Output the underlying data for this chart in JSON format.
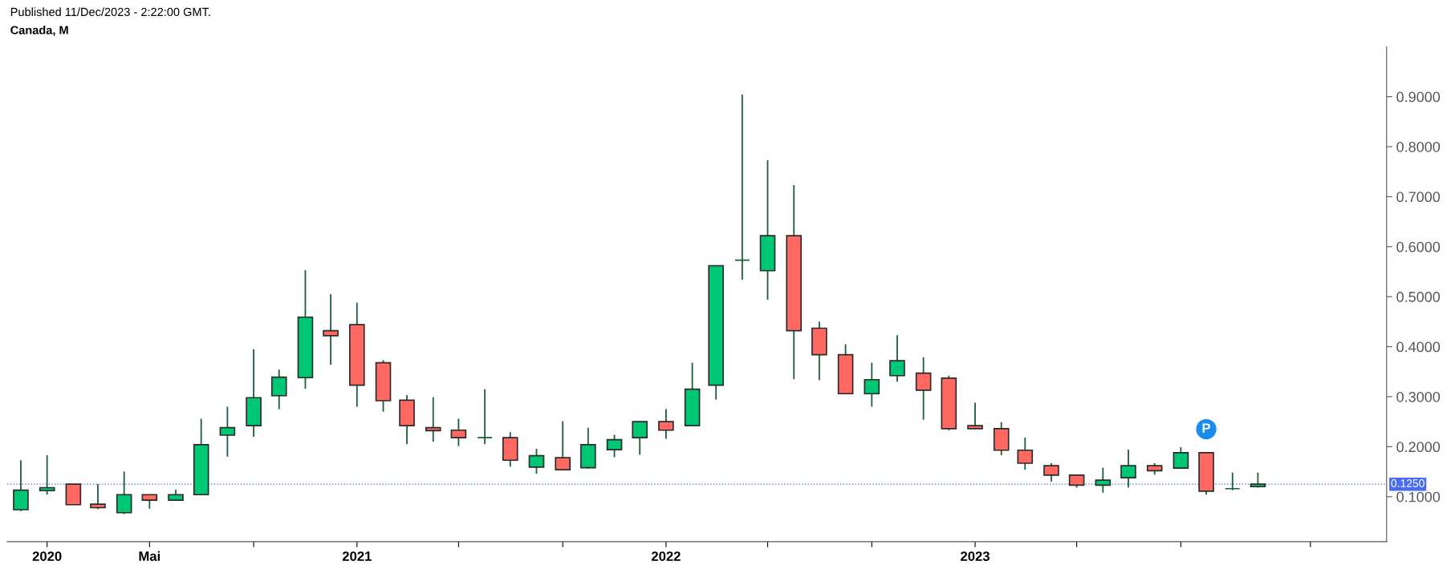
{
  "chart_data": {
    "type": "candlestick",
    "title": "Canada, M",
    "annotations": [
      "Published 11/Dec/2023 - 2:22:00 GMT.",
      {
        "text": "P",
        "x": "2023-10",
        "y": 0.235
      }
    ],
    "x": [
      "2019-12",
      "2020-01",
      "2020-02",
      "2020-03",
      "2020-04",
      "2020-05",
      "2020-06",
      "2020-07",
      "2020-08",
      "2020-09",
      "2020-10",
      "2020-11",
      "2020-12",
      "2021-01",
      "2021-02",
      "2021-03",
      "2021-04",
      "2021-05",
      "2021-06",
      "2021-07",
      "2021-08",
      "2021-09",
      "2021-10",
      "2021-11",
      "2021-12",
      "2022-01",
      "2022-02",
      "2022-03",
      "2022-04",
      "2022-05",
      "2022-06",
      "2022-07",
      "2022-08",
      "2022-09",
      "2022-10",
      "2022-11",
      "2022-12",
      "2023-01",
      "2023-02",
      "2023-03",
      "2023-04",
      "2023-05",
      "2023-06",
      "2023-07",
      "2023-08",
      "2023-09",
      "2023-10",
      "2023-11",
      "2023-12"
    ],
    "ohlc": [
      [
        0.074,
        0.173,
        0.071,
        0.113
      ],
      [
        0.112,
        0.183,
        0.104,
        0.118
      ],
      [
        0.125,
        0.125,
        0.084,
        0.084
      ],
      [
        0.085,
        0.125,
        0.075,
        0.078
      ],
      [
        0.068,
        0.15,
        0.065,
        0.104
      ],
      [
        0.104,
        0.104,
        0.076,
        0.093
      ],
      [
        0.093,
        0.114,
        0.093,
        0.104
      ],
      [
        0.104,
        0.256,
        0.104,
        0.204
      ],
      [
        0.223,
        0.28,
        0.18,
        0.238
      ],
      [
        0.242,
        0.395,
        0.22,
        0.298
      ],
      [
        0.302,
        0.354,
        0.275,
        0.339
      ],
      [
        0.338,
        0.553,
        0.316,
        0.459
      ],
      [
        0.432,
        0.505,
        0.364,
        0.422
      ],
      [
        0.444,
        0.488,
        0.28,
        0.323
      ],
      [
        0.368,
        0.373,
        0.27,
        0.292
      ],
      [
        0.293,
        0.303,
        0.205,
        0.242
      ],
      [
        0.238,
        0.299,
        0.21,
        0.232
      ],
      [
        0.233,
        0.256,
        0.201,
        0.218
      ],
      [
        0.218,
        0.315,
        0.205,
        0.218
      ],
      [
        0.218,
        0.229,
        0.16,
        0.173
      ],
      [
        0.159,
        0.196,
        0.146,
        0.182
      ],
      [
        0.178,
        0.251,
        0.154,
        0.154
      ],
      [
        0.158,
        0.238,
        0.156,
        0.204
      ],
      [
        0.194,
        0.224,
        0.179,
        0.214
      ],
      [
        0.218,
        0.25,
        0.184,
        0.25
      ],
      [
        0.25,
        0.275,
        0.216,
        0.233
      ],
      [
        0.242,
        0.368,
        0.242,
        0.315
      ],
      [
        0.323,
        0.562,
        0.294,
        0.562
      ],
      [
        0.573,
        0.904,
        0.534,
        0.573
      ],
      [
        0.552,
        0.773,
        0.494,
        0.622
      ],
      [
        0.622,
        0.723,
        0.335,
        0.432
      ],
      [
        0.437,
        0.45,
        0.333,
        0.384
      ],
      [
        0.384,
        0.405,
        0.305,
        0.306
      ],
      [
        0.306,
        0.368,
        0.28,
        0.334
      ],
      [
        0.342,
        0.423,
        0.33,
        0.372
      ],
      [
        0.347,
        0.379,
        0.254,
        0.313
      ],
      [
        0.337,
        0.342,
        0.233,
        0.236
      ],
      [
        0.242,
        0.288,
        0.235,
        0.236
      ],
      [
        0.236,
        0.249,
        0.183,
        0.193
      ],
      [
        0.193,
        0.218,
        0.154,
        0.167
      ],
      [
        0.162,
        0.167,
        0.13,
        0.143
      ],
      [
        0.143,
        0.144,
        0.118,
        0.123
      ],
      [
        0.123,
        0.158,
        0.108,
        0.133
      ],
      [
        0.138,
        0.194,
        0.118,
        0.162
      ],
      [
        0.162,
        0.167,
        0.144,
        0.152
      ],
      [
        0.157,
        0.199,
        0.157,
        0.188
      ],
      [
        0.188,
        0.188,
        0.104,
        0.111
      ],
      [
        0.116,
        0.148,
        0.113,
        0.116
      ],
      [
        0.12,
        0.148,
        0.118,
        0.125
      ]
    ],
    "colors": [
      "#00c774",
      "#00c774",
      "#ff6961",
      "#ff6961",
      "#00c774",
      "#ff6961",
      "#00c774",
      "#00c774",
      "#00c774",
      "#00c774",
      "#00c774",
      "#00c774",
      "#ff6961",
      "#ff6961",
      "#ff6961",
      "#ff6961",
      "#ff6961",
      "#ff6961",
      "#1b5e3a",
      "#ff6961",
      "#00c774",
      "#ff6961",
      "#00c774",
      "#00c774",
      "#00c774",
      "#ff6961",
      "#00c774",
      "#00c774",
      "#1b5e3a",
      "#00c774",
      "#ff6961",
      "#ff6961",
      "#ff6961",
      "#00c774",
      "#00c774",
      "#ff6961",
      "#ff6961",
      "#ff6961",
      "#ff6961",
      "#ff6961",
      "#ff6961",
      "#ff6961",
      "#00c774",
      "#00c774",
      "#ff6961",
      "#00c774",
      "#ff6961",
      "#1b5e3a",
      "#00c774"
    ],
    "xlim": [
      "2019-11-15",
      "2024-05-01"
    ],
    "xticks": [
      {
        "value": "2020-01",
        "label": "2020"
      },
      {
        "value": "2020-05",
        "label": "Mai"
      },
      {
        "value": "2020-09",
        "label": null
      },
      {
        "value": "2021-01",
        "label": "2021"
      },
      {
        "value": "2021-05",
        "label": null
      },
      {
        "value": "2021-09",
        "label": null
      },
      {
        "value": "2022-01",
        "label": "2022"
      },
      {
        "value": "2022-05",
        "label": null
      },
      {
        "value": "2022-09",
        "label": null
      },
      {
        "value": "2023-01",
        "label": "2023"
      },
      {
        "value": "2023-05",
        "label": null
      },
      {
        "value": "2023-09",
        "label": null
      },
      {
        "value": "2024-02",
        "label": null
      }
    ],
    "ylim": [
      0.01,
      1.0
    ],
    "yticks": [
      {
        "value": 0.1,
        "label": "0.1000"
      },
      {
        "value": 0.2,
        "label": "0.2000"
      },
      {
        "value": 0.3,
        "label": "0.3000"
      },
      {
        "value": 0.4,
        "label": "0.4000"
      },
      {
        "value": 0.5,
        "label": "0.5000"
      },
      {
        "value": 0.6,
        "label": "0.6000"
      },
      {
        "value": 0.7,
        "label": "0.7000"
      },
      {
        "value": 0.8,
        "label": "0.8000"
      },
      {
        "value": 0.9,
        "label": "0.9000"
      }
    ],
    "ref_lines": [
      {
        "axis": "y",
        "value": 0.125,
        "label": "0.1250",
        "color": "#4a6cf0",
        "line_style": "dotted"
      }
    ],
    "grid": false,
    "legend": false
  }
}
